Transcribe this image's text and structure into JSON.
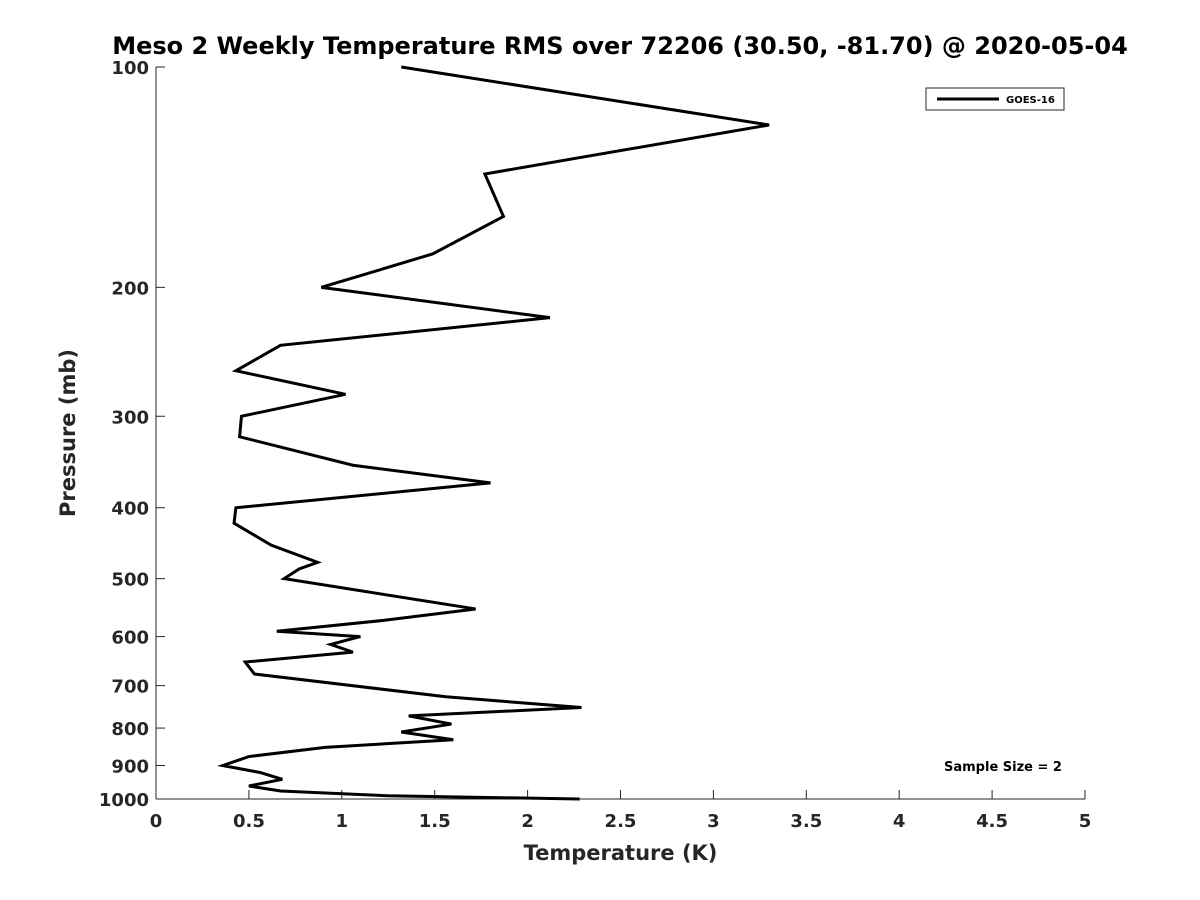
{
  "chart_data": {
    "type": "line",
    "title": "Meso 2 Weekly Temperature RMS over 72206 (30.50, -81.70) @ 2020-05-04",
    "xlabel": "Temperature (K)",
    "ylabel": "Pressure (mb)",
    "xlim": [
      0,
      5
    ],
    "ylim": [
      100,
      1000
    ],
    "y_scale": "log",
    "y_reversed": true,
    "grid": false,
    "x_ticks": [
      0,
      0.5,
      1,
      1.5,
      2,
      2.5,
      3,
      3.5,
      4,
      4.5,
      5
    ],
    "x_tick_labels": [
      "0",
      "0.5",
      "1",
      "1.5",
      "2",
      "2.5",
      "3",
      "3.5",
      "4",
      "4.5",
      "5"
    ],
    "y_ticks": [
      100,
      200,
      300,
      400,
      500,
      600,
      700,
      800,
      900,
      1000
    ],
    "y_tick_labels": [
      "100",
      "200",
      "300",
      "400",
      "500",
      "600",
      "700",
      "800",
      "900",
      "1000"
    ],
    "legend": {
      "position": "top-right"
    },
    "annotation": "Sample Size = 2",
    "series": [
      {
        "name": "GOES-16",
        "color": "#000000",
        "points": [
          [
            1.32,
            100
          ],
          [
            3.3,
            120
          ],
          [
            1.77,
            140
          ],
          [
            1.87,
            160
          ],
          [
            1.49,
            180
          ],
          [
            0.89,
            200
          ],
          [
            2.12,
            220
          ],
          [
            0.67,
            240
          ],
          [
            0.43,
            260
          ],
          [
            1.02,
            280
          ],
          [
            0.46,
            300
          ],
          [
            0.45,
            320
          ],
          [
            1.06,
            350
          ],
          [
            1.8,
            370
          ],
          [
            0.43,
            400
          ],
          [
            0.42,
            420
          ],
          [
            0.62,
            450
          ],
          [
            0.87,
            475
          ],
          [
            0.77,
            485
          ],
          [
            0.69,
            500
          ],
          [
            1.72,
            550
          ],
          [
            1.23,
            570
          ],
          [
            0.65,
            590
          ],
          [
            1.1,
            600
          ],
          [
            0.94,
            615
          ],
          [
            1.06,
            630
          ],
          [
            0.48,
            650
          ],
          [
            0.53,
            675
          ],
          [
            1.56,
            725
          ],
          [
            2.29,
            750
          ],
          [
            1.36,
            770
          ],
          [
            1.59,
            790
          ],
          [
            1.32,
            810
          ],
          [
            1.6,
            830
          ],
          [
            0.91,
            850
          ],
          [
            0.5,
            875
          ],
          [
            0.36,
            900
          ],
          [
            0.56,
            920
          ],
          [
            0.68,
            940
          ],
          [
            0.5,
            960
          ],
          [
            0.67,
            975
          ],
          [
            1.25,
            990
          ],
          [
            2.28,
            1000
          ]
        ]
      }
    ]
  }
}
